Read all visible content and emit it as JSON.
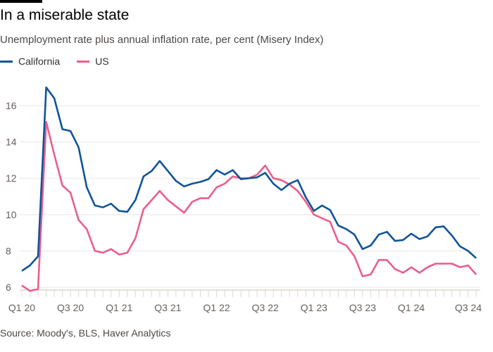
{
  "title": "In a miserable state",
  "subtitle": "Unemployment rate plus annual inflation rate, per cent (Misery Index)",
  "source": "Source: Moody's, BLS, Haver Analytics",
  "chart_data": {
    "type": "line",
    "title": "In a miserable state",
    "subtitle": "Unemployment rate plus annual inflation rate, per cent (Misery Index)",
    "xlabel": "",
    "ylabel": "",
    "x_frequency": "monthly",
    "x_start": "Q1 20",
    "x_tick_labels": [
      "Q1 20",
      "Q3 20",
      "Q1 21",
      "Q3 21",
      "Q1 22",
      "Q3 22",
      "Q1 23",
      "Q3 23",
      "Q1 24",
      "Q3 24"
    ],
    "y_ticks": [
      6,
      8,
      10,
      12,
      14,
      16
    ],
    "ylim": [
      6,
      17
    ],
    "grid": true,
    "legend_position": "top-left",
    "series": [
      {
        "name": "California",
        "color": "#0f5499",
        "values": [
          6.9,
          7.2,
          7.7,
          17.0,
          16.4,
          14.7,
          14.6,
          13.7,
          11.5,
          10.5,
          10.4,
          10.6,
          10.2,
          10.15,
          10.8,
          12.1,
          12.4,
          12.95,
          12.4,
          11.85,
          11.55,
          11.7,
          11.8,
          11.95,
          12.45,
          12.2,
          12.45,
          11.95,
          12.0,
          12.05,
          12.3,
          11.7,
          11.35,
          11.7,
          11.9,
          10.95,
          10.2,
          10.5,
          10.25,
          9.4,
          9.2,
          8.9,
          8.1,
          8.3,
          8.9,
          9.05,
          8.55,
          8.6,
          8.95,
          8.65,
          8.8,
          9.3,
          9.35,
          8.85,
          8.25,
          8.0,
          7.6
        ]
      },
      {
        "name": "US",
        "color": "#eb5e8d",
        "values": [
          6.1,
          5.8,
          5.9,
          15.1,
          13.3,
          11.6,
          11.2,
          9.7,
          9.2,
          8.0,
          7.9,
          8.1,
          7.8,
          7.9,
          8.7,
          10.3,
          10.8,
          11.3,
          10.8,
          10.45,
          10.1,
          10.7,
          10.9,
          10.9,
          11.5,
          11.7,
          12.1,
          12.0,
          12.0,
          12.2,
          12.7,
          12.0,
          11.9,
          11.65,
          11.3,
          10.7,
          10.0,
          9.8,
          9.6,
          8.5,
          8.3,
          7.7,
          6.6,
          6.7,
          7.5,
          7.5,
          7.0,
          6.8,
          7.1,
          6.8,
          7.1,
          7.3,
          7.3,
          7.3,
          7.1,
          7.2,
          6.7
        ]
      }
    ]
  }
}
